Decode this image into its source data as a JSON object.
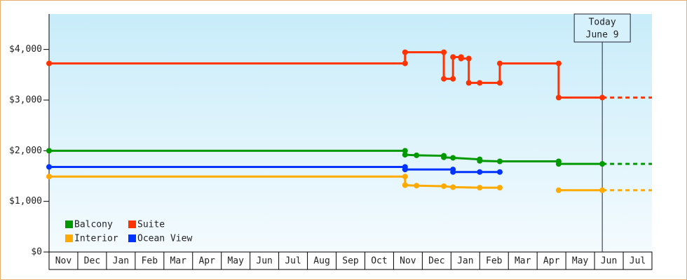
{
  "chart_data": {
    "type": "step-line",
    "categories": [
      "Nov",
      "Dec",
      "Jan",
      "Feb",
      "Mar",
      "Apr",
      "May",
      "Jun",
      "Jul",
      "Aug",
      "Sep",
      "Oct",
      "Nov",
      "Dec",
      "Jan",
      "Feb",
      "Mar",
      "Apr",
      "May",
      "Jun",
      "Jul"
    ],
    "xlim": [
      0,
      21
    ],
    "ylim": [
      0,
      4700
    ],
    "yticks": [
      {
        "value": 0,
        "label": "$0"
      },
      {
        "value": 1000,
        "label": "$1,000"
      },
      {
        "value": 2000,
        "label": "$2,000"
      },
      {
        "value": 3000,
        "label": "$3,000"
      },
      {
        "value": 4000,
        "label": "$4,000"
      }
    ],
    "legend": "bottom-left",
    "today": {
      "x": 19.27,
      "label": [
        "Today",
        "June 9"
      ]
    },
    "series": [
      {
        "name": "Balcony",
        "color": "#009900",
        "x": [
          0,
          12.4,
          12.4,
          12.8,
          13.75,
          13.75,
          14.07,
          15.0,
          15.0,
          15.7,
          17.75,
          17.75,
          19.27
        ],
        "values": [
          2000,
          2000,
          1920,
          1910,
          1900,
          1870,
          1860,
          1830,
          1800,
          1790,
          1790,
          1740,
          1740
        ]
      },
      {
        "name": "Suite",
        "color": "#ff3300",
        "x": [
          0,
          12.4,
          12.4,
          13.75,
          13.75,
          14.07,
          14.07,
          14.35,
          14.35,
          14.62,
          14.62,
          15.0,
          15.7,
          15.7,
          17.75,
          17.75,
          19.27
        ],
        "values": [
          3724,
          3724,
          3945,
          3945,
          3420,
          3420,
          3850,
          3850,
          3820,
          3820,
          3340,
          3340,
          3340,
          3724,
          3724,
          3050,
          3050
        ]
      },
      {
        "name": "Interior",
        "color": "#ffaa00",
        "x": [
          0,
          12.4,
          12.4,
          12.8,
          13.75,
          14.07,
          15.0,
          15.7,
          16.5,
          17.75,
          19.27
        ],
        "values": [
          1490,
          1490,
          1320,
          1310,
          1300,
          1280,
          1270,
          1270,
          null,
          1220,
          1220
        ]
      },
      {
        "name": "Ocean View",
        "color": "#0033ff",
        "x": [
          0,
          12.4,
          12.4,
          14.07,
          14.07,
          15.0,
          15.7
        ],
        "values": [
          1680,
          1680,
          1630,
          1630,
          1580,
          1580,
          1580
        ]
      }
    ]
  }
}
